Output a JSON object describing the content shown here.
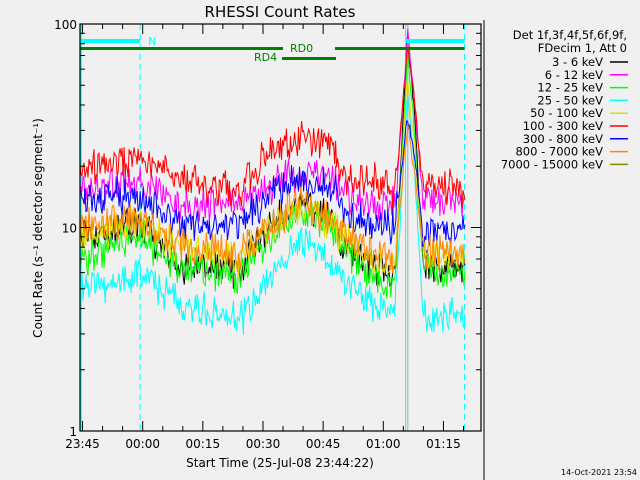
{
  "chart_data": {
    "type": "line",
    "title": "RHESSI Count Rates",
    "xlabel": "Start Time (25-Jul-08 23:44:22)",
    "ylabel": "Count Rate (s⁻¹ detector segment⁻¹)",
    "yscale": "log",
    "ylim": [
      1,
      100
    ],
    "xlim_minutes_from_start": [
      0,
      100
    ],
    "y_tick_labels": [
      "1",
      "10",
      "100"
    ],
    "x_tick_labels": [
      "23:45",
      "00:00",
      "00:15",
      "00:30",
      "00:45",
      "01:00",
      "01:15"
    ],
    "x_tick_minutes_from_start": [
      0.633,
      15.633,
      30.633,
      45.633,
      60.633,
      75.633,
      90.633
    ],
    "legend_header": [
      "Det 1f,3f,4f,5f,6f,9f,",
      "FDecim 1, Att 0"
    ],
    "legend_position": "right",
    "control_times_minutes": [
      0,
      15,
      25,
      40,
      47,
      55,
      63,
      66,
      73,
      78.5,
      80,
      81.7,
      83.5,
      85.5,
      90,
      96
    ],
    "series": [
      {
        "name": "3 - 6 keV",
        "color": "#000000",
        "values": [
          8.7,
          10.3,
          6.5,
          6.2,
          10.3,
          13,
          10.9,
          7.7,
          6.5,
          5.8,
          20,
          95,
          35,
          6.5,
          6.4,
          6.3
        ]
      },
      {
        "name": "6 - 12 keV",
        "color": "#ff00ff",
        "values": [
          15.3,
          16.5,
          13,
          13,
          16,
          19,
          18,
          14.5,
          13,
          13,
          30,
          90,
          40,
          13.6,
          13.5,
          13
        ]
      },
      {
        "name": "12 - 25 keV",
        "color": "#00ff00",
        "values": [
          6.9,
          9.2,
          6.2,
          5.8,
          8.5,
          12.2,
          9.7,
          7.8,
          5.8,
          5.5,
          18,
          70,
          28,
          6.2,
          6,
          5.8
        ]
      },
      {
        "name": "25 - 50 keV",
        "color": "#00ffff",
        "values": [
          4.9,
          5.8,
          4.2,
          3.5,
          5.5,
          8.7,
          6.9,
          5.2,
          4.2,
          3.7,
          12,
          48,
          18,
          3.7,
          3.7,
          3.6
        ]
      },
      {
        "name": "50 - 100 keV",
        "color": "#dddd00",
        "values": [
          9.2,
          10.5,
          7.8,
          7,
          10,
          12.5,
          10.5,
          8.8,
          7,
          6.5,
          18,
          55,
          24,
          7.5,
          7.2,
          7
        ]
      },
      {
        "name": "100 - 300 keV",
        "color": "#ff0000",
        "values": [
          19,
          22,
          17,
          15,
          24,
          28,
          25,
          18,
          17,
          15,
          30,
          80,
          40,
          16,
          16,
          15
        ]
      },
      {
        "name": "300 - 800 keV",
        "color": "#0000ff",
        "values": [
          13.6,
          14.5,
          10.2,
          10.2,
          14.5,
          17,
          16,
          11.5,
          10.2,
          10,
          18,
          35,
          22,
          9.7,
          9.6,
          9.5
        ]
      },
      {
        "name": "800 - 7000 keV",
        "color": "#ff8800",
        "values": [
          10.3,
          10.9,
          8.2,
          7.3,
          10.3,
          13,
          10.9,
          9.2,
          7.3,
          6.8,
          14,
          32,
          18,
          7.7,
          7.6,
          7.5
        ]
      },
      {
        "name": "7000 - 15000 keV",
        "color": "#888800",
        "values": []
      }
    ],
    "annotations": {
      "night_label": "N",
      "decimation_labels": [
        "RD0",
        "RD4"
      ]
    }
  },
  "timestamp": "14-Oct-2021 23:54"
}
